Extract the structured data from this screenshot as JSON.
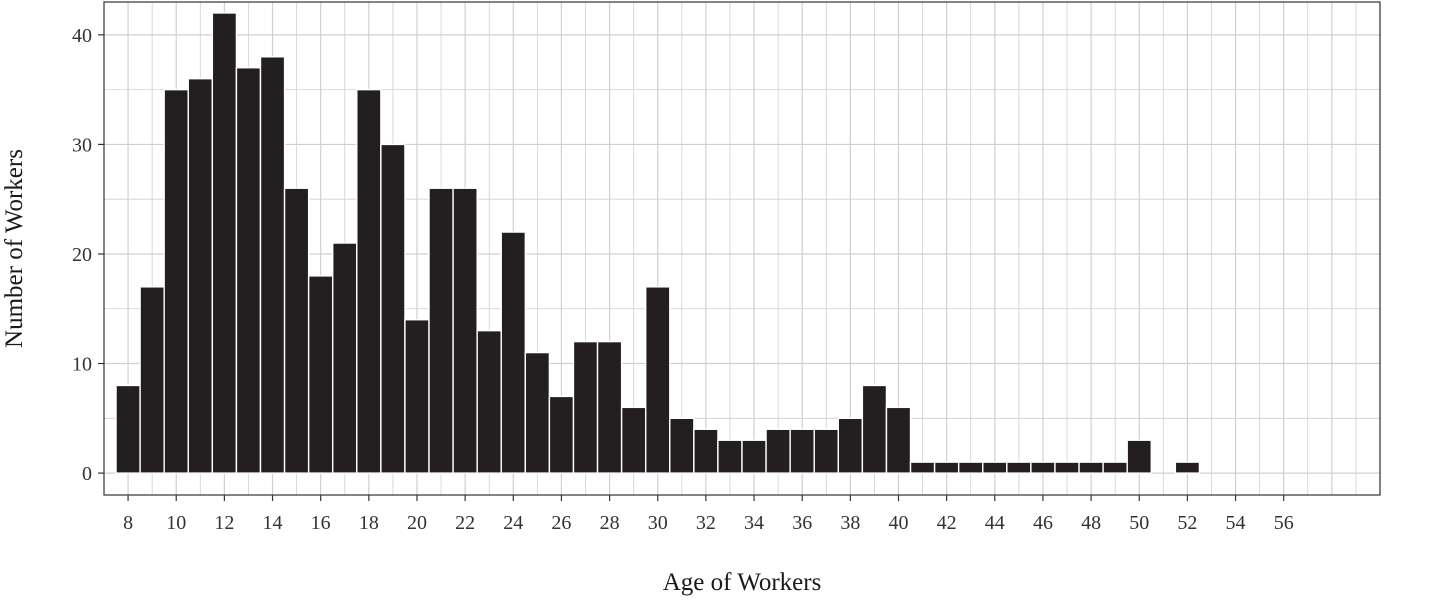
{
  "chart_data": {
    "type": "bar",
    "title": "",
    "xlabel": "Age of Workers",
    "ylabel": "Number of Workers",
    "x": [
      8,
      9,
      10,
      11,
      12,
      13,
      14,
      15,
      16,
      17,
      18,
      19,
      20,
      21,
      22,
      23,
      24,
      25,
      26,
      27,
      28,
      29,
      30,
      31,
      32,
      33,
      34,
      35,
      36,
      37,
      38,
      39,
      40,
      41,
      42,
      43,
      44,
      45,
      46,
      47,
      48,
      49,
      50,
      52
    ],
    "values": [
      8,
      17,
      35,
      36,
      42,
      37,
      38,
      26,
      18,
      21,
      35,
      30,
      14,
      26,
      26,
      13,
      22,
      11,
      7,
      12,
      12,
      6,
      17,
      5,
      4,
      3,
      3,
      4,
      4,
      4,
      5,
      8,
      6,
      1,
      1,
      1,
      1,
      1,
      1,
      1,
      1,
      1,
      3,
      1
    ],
    "xlim": [
      7,
      60
    ],
    "ylim": [
      -2,
      43
    ],
    "x_ticks": [
      "8",
      "10",
      "12",
      "14",
      "16",
      "18",
      "20",
      "22",
      "24",
      "26",
      "28",
      "30",
      "32",
      "34",
      "36",
      "38",
      "40",
      "42",
      "44",
      "46",
      "48",
      "50",
      "52",
      "54",
      "56"
    ],
    "y_ticks": [
      "0",
      "10",
      "20",
      "30",
      "40"
    ],
    "grid": true,
    "legend": "none",
    "colors": {
      "bar": "#231f20",
      "bar_edge": "#ffffff",
      "grid": "#d0d0d0",
      "panel_border": "#333333",
      "tick_color": "#333333"
    }
  }
}
